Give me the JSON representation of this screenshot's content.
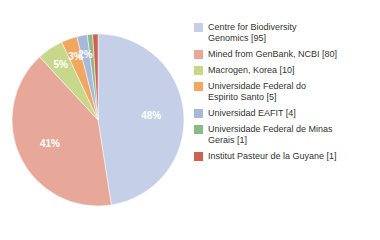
{
  "chart_data": {
    "type": "pie",
    "categories": [
      "Centre for Biodiversity\nGenomics [95]",
      "Mined from GenBank, NCBI [80]",
      "Macrogen, Korea [10]",
      "Universidade Federal do\nEspirito Santo [5]",
      "Universidad EAFIT [4]",
      "Universidade Federal de Minas\nGerais [1]",
      "Institut Pasteur de la Guyane [1]"
    ],
    "values": [
      48,
      41,
      5,
      3,
      2,
      1,
      1
    ],
    "value_labels": [
      "48%",
      "41%",
      "5%",
      "3%",
      "2%",
      null,
      null
    ],
    "colors": [
      "#c5cfe8",
      "#e8a899",
      "#c8d88a",
      "#f0a860",
      "#a8b8d8",
      "#88bb88",
      "#d06050"
    ],
    "data_labels": true,
    "legend": "right"
  }
}
